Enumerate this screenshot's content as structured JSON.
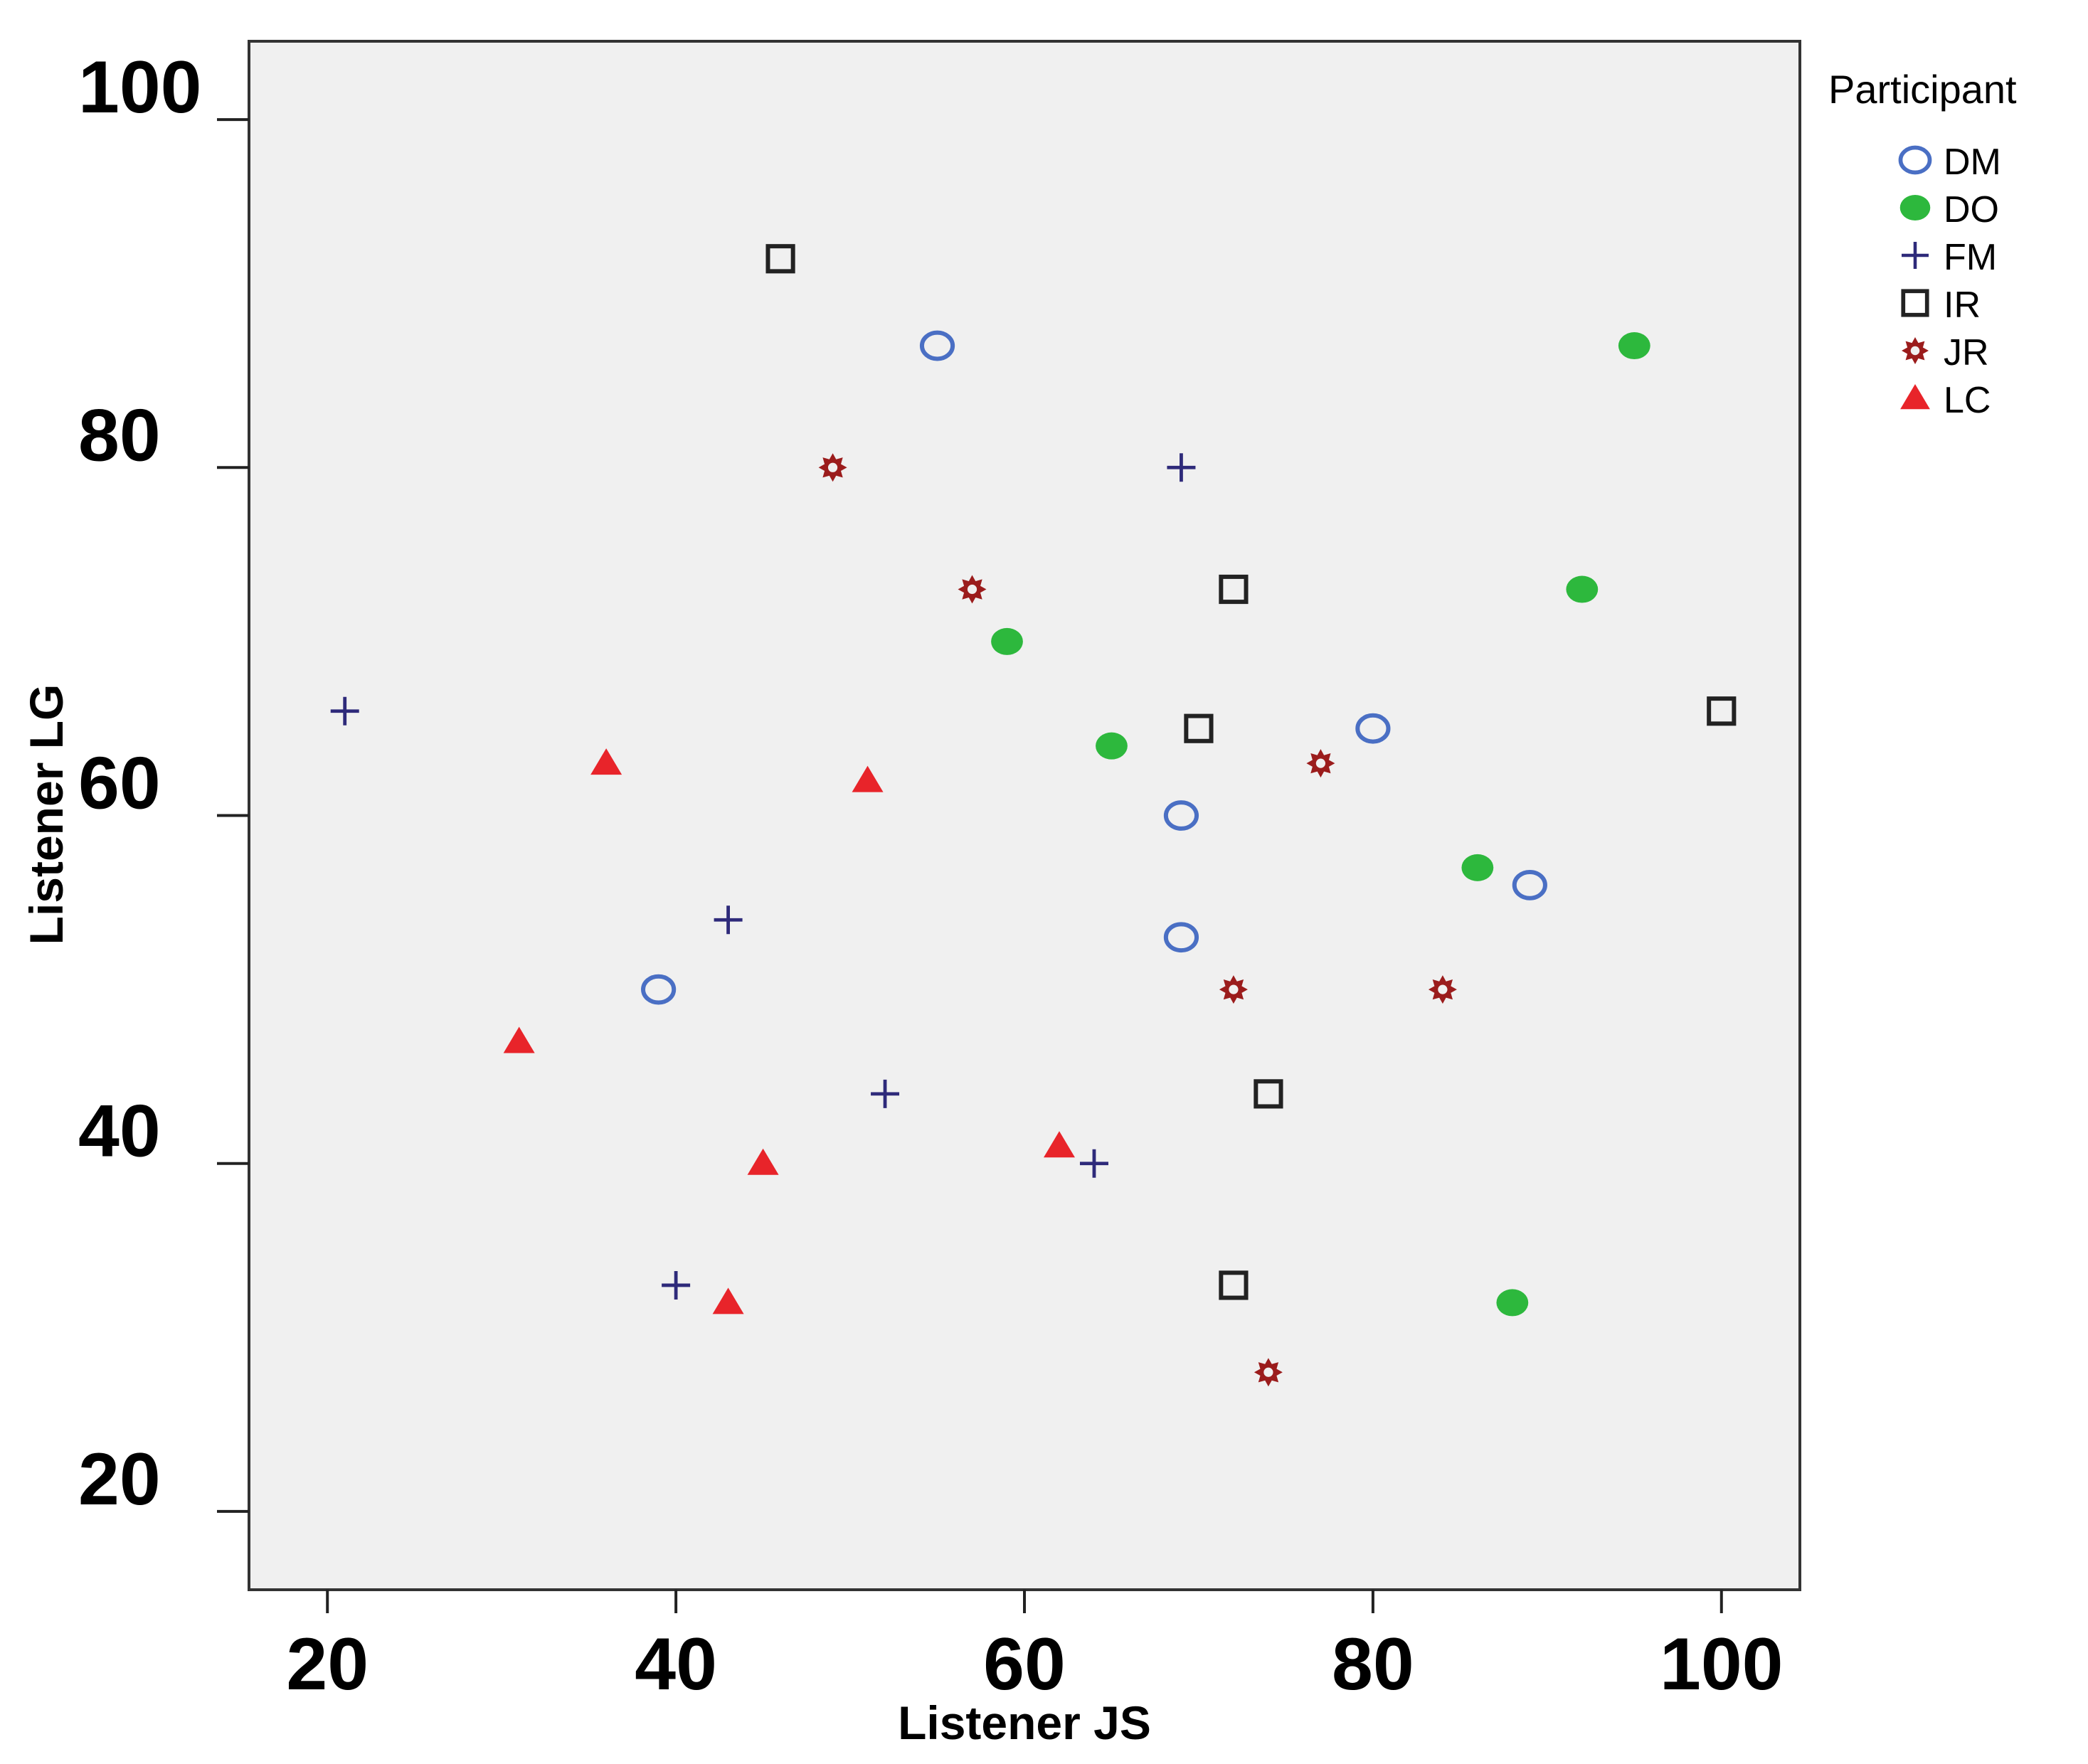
{
  "chart_data": {
    "type": "scatter",
    "title": "",
    "xlabel": "Listener JS",
    "ylabel": "Listener LG",
    "xlim": [
      15.5,
      104.5
    ],
    "ylim": [
      15.5,
      104.5
    ],
    "x_ticks": [
      20,
      40,
      60,
      80,
      100
    ],
    "y_ticks": [
      20,
      40,
      60,
      80,
      100
    ],
    "grid": false,
    "legend_title": "Participant",
    "legend_position": "right",
    "background_color": "#f0f0f0",
    "series": [
      {
        "name": "DM",
        "marker": "open-circle",
        "color": "#4a6fc4",
        "points": [
          [
            55,
            87
          ],
          [
            80,
            65
          ],
          [
            69,
            60
          ],
          [
            89,
            56
          ],
          [
            69,
            53
          ],
          [
            39,
            50
          ]
        ]
      },
      {
        "name": "DO",
        "marker": "filled-circle",
        "color": "#2db83d",
        "points": [
          [
            95,
            87
          ],
          [
            92,
            73
          ],
          [
            59,
            70
          ],
          [
            65,
            64
          ],
          [
            86,
            57
          ],
          [
            88,
            32
          ]
        ]
      },
      {
        "name": "FM",
        "marker": "plus",
        "color": "#2e2a7a",
        "points": [
          [
            69,
            80
          ],
          [
            21,
            66
          ],
          [
            43,
            54
          ],
          [
            52,
            44
          ],
          [
            64,
            40
          ],
          [
            40,
            33
          ]
        ]
      },
      {
        "name": "IR",
        "marker": "open-square",
        "color": "#222222",
        "points": [
          [
            46,
            92
          ],
          [
            72,
            73
          ],
          [
            70,
            65
          ],
          [
            100,
            66
          ],
          [
            74,
            44
          ],
          [
            72,
            33
          ]
        ]
      },
      {
        "name": "JR",
        "marker": "star",
        "color": "#9b1c1c",
        "points": [
          [
            49,
            80
          ],
          [
            57,
            73
          ],
          [
            77,
            63
          ],
          [
            72,
            50
          ],
          [
            84,
            50
          ],
          [
            74,
            28
          ]
        ]
      },
      {
        "name": "LC",
        "marker": "triangle",
        "color": "#e8242a",
        "points": [
          [
            36,
            63
          ],
          [
            51,
            62
          ],
          [
            31,
            47
          ],
          [
            45,
            40
          ],
          [
            62,
            41
          ],
          [
            43,
            32
          ]
        ]
      }
    ]
  }
}
